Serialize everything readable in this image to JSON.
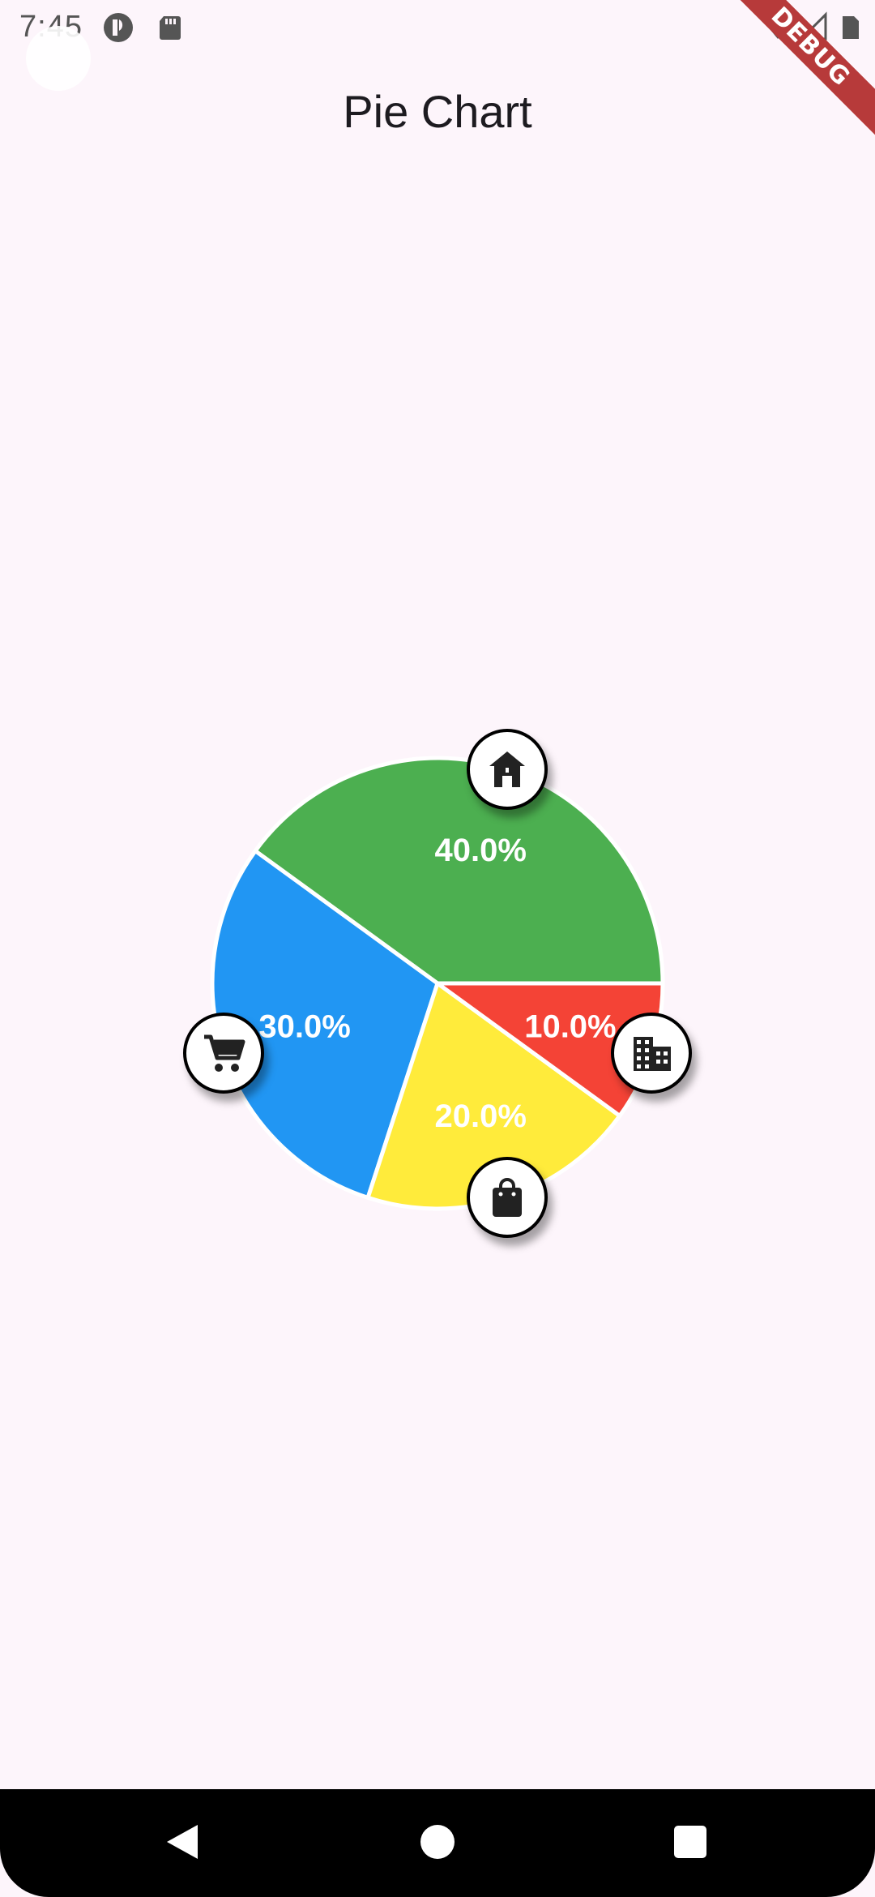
{
  "status_bar": {
    "time": "7:45"
  },
  "debug_banner": "DEBUG",
  "app_bar": {
    "title": "Pie Chart"
  },
  "chart_data": {
    "type": "pie",
    "title": "",
    "slices": [
      {
        "label": "40.0%",
        "value": 40,
        "color": "#4caf50",
        "icon": "home-icon"
      },
      {
        "label": "30.0%",
        "value": 30,
        "color": "#2196f3",
        "icon": "shopping-cart-icon"
      },
      {
        "label": "20.0%",
        "value": 20,
        "color": "#ffeb3b",
        "icon": "shopping-bag-icon"
      },
      {
        "label": "10.0%",
        "value": 10,
        "color": "#f44336",
        "icon": "business-icon"
      }
    ],
    "start_angle_deg": 0,
    "direction": "counter-clockwise",
    "slice_separator_color": "#ffffff",
    "badge_border_color": "#000000"
  },
  "nav_bar": {
    "buttons": [
      "back-icon",
      "home-circle-icon",
      "recents-icon"
    ]
  }
}
